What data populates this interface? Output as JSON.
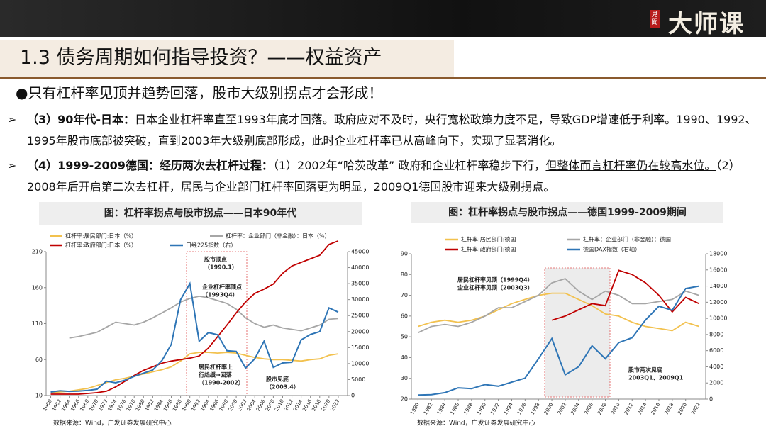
{
  "header": {
    "logo": "大师课",
    "logo_mark": "見聞",
    "title": "1.3 债务周期如何指导投资？——权益资产"
  },
  "lead": "●只有杠杆率见顶并趋势回落，股市大级别拐点才会形成！",
  "points": [
    {
      "bold": "（3）90年代-日本：",
      "text": "日本企业杠杆率直至1993年底才回落。政府应对不及时，央行宽松政策力度不足，导致GDP增速低于利率。1990、1992、1995年股市底部被突破，直到2003年大级别底部形成，此时企业杠杆率已从高峰向下，实现了显著消化。"
    },
    {
      "bold": "（4）1999-2009德国：经历两次去杠杆过程：",
      "text": "（1）2002年“哈茨改革” 政府和企业杠杆率稳步下行，",
      "underline": "但整体而言杠杆率仍在较高水位。",
      "tail": "（2）2008年后开启第二次去杠杆，居民与企业部门杠杆率回落更为明显，2009Q1德国股市迎来大级别拐点。"
    }
  ],
  "chart_data": [
    {
      "type": "line",
      "title": "图：杠杆率拐点与股市拐点——日本90年代",
      "source": "数据来源：Wind，广发证券发展研究中心",
      "x": [
        1960,
        1962,
        1964,
        1966,
        1968,
        1970,
        1972,
        1974,
        1976,
        1978,
        1980,
        1982,
        1984,
        1986,
        1988,
        1990,
        1992,
        1994,
        1996,
        1998,
        2000,
        2002,
        2004,
        2006,
        2008,
        2010,
        2012,
        2014,
        2016,
        2018,
        2020,
        2022
      ],
      "xlim": [
        1959,
        2024
      ],
      "xticks": [
        1960,
        1962,
        1964,
        1966,
        1968,
        1970,
        1972,
        1974,
        1976,
        1978,
        1980,
        1982,
        1984,
        1986,
        1988,
        1990,
        1992,
        1994,
        1996,
        1998,
        2000,
        2002,
        2004,
        2006,
        2008,
        2010,
        2012,
        2014,
        2016,
        2018,
        2020,
        2022
      ],
      "ylim": [
        10,
        210
      ],
      "yticks": [
        10,
        60,
        110,
        160,
        210
      ],
      "y2lim": [
        0,
        45000
      ],
      "y2ticks": [
        0,
        5000,
        10000,
        15000,
        20000,
        25000,
        30000,
        35000,
        40000,
        45000
      ],
      "series": [
        {
          "name": "杠杆率:居民部门:日本（%）",
          "color": "#f2c14e",
          "values": [
            14,
            15,
            16,
            18,
            20,
            24,
            28,
            32,
            34,
            37,
            40,
            43,
            46,
            50,
            58,
            68,
            70,
            70,
            69,
            70,
            69,
            66,
            63,
            61,
            60,
            60,
            59,
            58,
            60,
            61,
            66,
            68
          ]
        },
        {
          "name": "杠杆率：企业部门（非金融）：日本（%）",
          "color": "#a6a6a6",
          "values": [
            null,
            null,
            90,
            92,
            95,
            98,
            105,
            112,
            110,
            108,
            112,
            118,
            125,
            132,
            140,
            145,
            148,
            146,
            142,
            138,
            130,
            118,
            110,
            105,
            108,
            104,
            102,
            100,
            104,
            108,
            116,
            117
          ]
        },
        {
          "name": "杠杆率:政府部门:日本（%）",
          "color": "#c00000",
          "values": [
            12,
            12,
            12,
            12,
            13,
            14,
            16,
            22,
            30,
            38,
            45,
            50,
            55,
            58,
            60,
            62,
            65,
            76,
            92,
            108,
            125,
            140,
            152,
            158,
            165,
            180,
            190,
            195,
            200,
            205,
            220,
            225
          ]
        },
        {
          "name": "日经225指数（右）",
          "color": "#2e75b6",
          "axis": "y2",
          "values": [
            1100,
            1500,
            1300,
            1400,
            1600,
            2000,
            4500,
            4000,
            4800,
            6000,
            7000,
            8000,
            11000,
            16000,
            30000,
            35000,
            17000,
            19700,
            19000,
            14000,
            13800,
            8600,
            11500,
            17000,
            8800,
            10200,
            10400,
            17400,
            19100,
            20000,
            27400,
            26100
          ]
        }
      ],
      "annotations": [
        {
          "lines": [
            "股市顶点",
            "（1990.1）"
          ]
        },
        {
          "lines": [
            "企业杠杆率顶点",
            "（1993Q4）"
          ]
        },
        {
          "lines": [
            "居民杠杆率上",
            "行趋缓→回落",
            "（1990-2002）"
          ]
        },
        {
          "lines": [
            "股市见底",
            "（2003.4）"
          ]
        }
      ]
    },
    {
      "type": "line",
      "title": "图：杠杆率拐点与股市拐点——德国1999-2009期间",
      "source": "数据来源：Wind，广发证券发展研究中心",
      "x": [
        1980,
        1982,
        1984,
        1986,
        1988,
        1990,
        1992,
        1994,
        1996,
        1998,
        2000,
        2002,
        2004,
        2006,
        2008,
        2010,
        2012,
        2014,
        2016,
        2018,
        2020,
        2022
      ],
      "xlim": [
        1979,
        2023
      ],
      "xticks": [
        1980,
        1982,
        1984,
        1986,
        1988,
        1990,
        1992,
        1994,
        1996,
        1998,
        2000,
        2002,
        2004,
        2006,
        2008,
        2010,
        2012,
        2014,
        2016,
        2018,
        2020,
        2022
      ],
      "ylim": [
        20,
        90
      ],
      "yticks": [
        20,
        30,
        40,
        50,
        60,
        70,
        80,
        90
      ],
      "y2lim": [
        0,
        18000
      ],
      "y2ticks": [
        0,
        2000,
        4000,
        6000,
        8000,
        10000,
        12000,
        14000,
        16000,
        18000
      ],
      "series": [
        {
          "name": "杠杆率:居民部门:德国",
          "color": "#f2c14e",
          "values": [
            55,
            57,
            58,
            57,
            58,
            60,
            63,
            66,
            68,
            70,
            71,
            71,
            68,
            65,
            61,
            60,
            57,
            55,
            54,
            53,
            57,
            55
          ]
        },
        {
          "name": "杠杆率：企业部门（非金融）：德国",
          "color": "#a6a6a6",
          "values": [
            52,
            55,
            56,
            55,
            57,
            60,
            64,
            64,
            67,
            70,
            76,
            78,
            72,
            68,
            72,
            70,
            66,
            66,
            67,
            68,
            72,
            70
          ]
        },
        {
          "name": "杠杆率:政府部门:德国",
          "color": "#c00000",
          "values": [
            null,
            null,
            null,
            null,
            null,
            null,
            null,
            null,
            null,
            null,
            58,
            60,
            63,
            66,
            65,
            82,
            80,
            76,
            70,
            62,
            69,
            66
          ]
        },
        {
          "name": "德国DAX指数（右轴）",
          "color": "#2e75b6",
          "axis": "y2",
          "values": [
            500,
            550,
            800,
            1400,
            1300,
            1800,
            1600,
            2100,
            2600,
            5000,
            7500,
            3000,
            4000,
            6600,
            5000,
            7000,
            7600,
            9800,
            11500,
            11000,
            13700,
            14000
          ]
        }
      ],
      "annotations": [
        {
          "lines": [
            "居民杠杆率见顶（1999Q4）",
            "企业杠杆率见顶（2003Q3）"
          ]
        },
        {
          "lines": [
            "股市两次见底",
            "2003Q1、2009Q1"
          ]
        }
      ]
    }
  ]
}
